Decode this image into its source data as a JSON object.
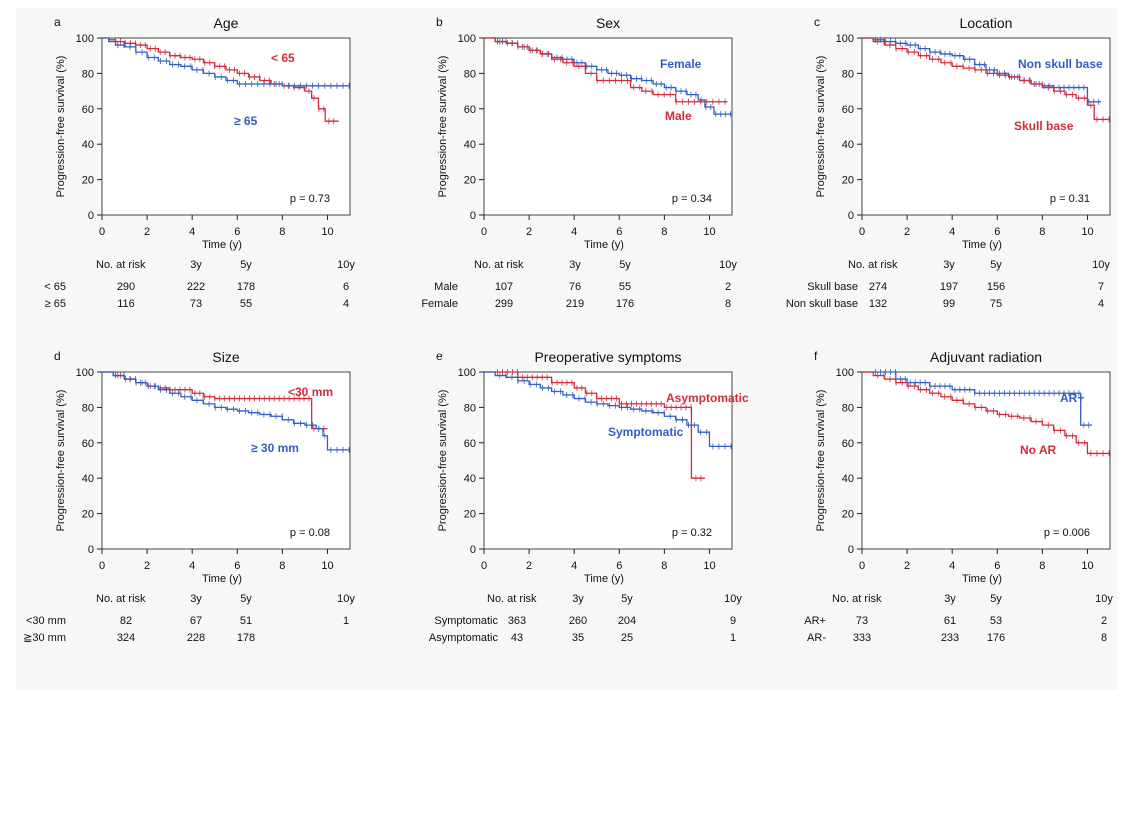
{
  "colors": {
    "red": "#d42b3a",
    "blue": "#2f5fc4"
  },
  "chart_data": [
    {
      "type": "line",
      "letter": "a",
      "title": "Age",
      "xlabel": "Time (y)",
      "ylabel": "Progression-free survival (%)",
      "xlim": [
        0,
        11
      ],
      "ylim": [
        0,
        100
      ],
      "xticks": [
        0,
        2,
        4,
        6,
        8,
        10
      ],
      "yticks": [
        0,
        20,
        40,
        60,
        80,
        100
      ],
      "grid": false,
      "p_value": "p = 0.73",
      "series": [
        {
          "name": "< 65",
          "color": "red",
          "x": [
            0,
            0.3,
            0.6,
            1.0,
            1.5,
            2.0,
            2.5,
            3.0,
            3.5,
            4.0,
            4.5,
            5.0,
            5.5,
            6.0,
            6.5,
            7.0,
            7.5,
            8.0,
            8.5,
            9.0,
            9.3,
            9.6,
            9.9,
            10.5
          ],
          "y": [
            100,
            99,
            98,
            97,
            96,
            94,
            92,
            90,
            89,
            88,
            86,
            84,
            82,
            80,
            78,
            76,
            74,
            73,
            72,
            70,
            66,
            60,
            53,
            53
          ]
        },
        {
          "name": "≥ 65",
          "color": "blue",
          "x": [
            0,
            0.3,
            0.6,
            1.0,
            1.5,
            2.0,
            2.5,
            3.0,
            3.5,
            4.0,
            4.5,
            5.0,
            5.5,
            6.0,
            7.0,
            8.0,
            9.0,
            10.0,
            11.0
          ],
          "y": [
            100,
            98,
            96,
            95,
            92,
            89,
            87,
            85,
            84,
            82,
            80,
            78,
            76,
            74,
            74,
            73,
            73,
            73,
            73
          ]
        }
      ],
      "risk_table": {
        "header": "No. at risk",
        "times": [
          "3y",
          "5y",
          "10y"
        ],
        "rows": [
          {
            "label": "< 65",
            "n": "290",
            "values": [
              "222",
              "178",
              "6"
            ]
          },
          {
            "label": "≥ 65",
            "n": "116",
            "values": [
              "73",
              "55",
              "4"
            ]
          }
        ]
      }
    },
    {
      "type": "line",
      "letter": "b",
      "title": "Sex",
      "xlabel": "Time (y)",
      "ylabel": "Progression-free survival (%)",
      "xlim": [
        0,
        11
      ],
      "ylim": [
        0,
        100
      ],
      "xticks": [
        0,
        2,
        4,
        6,
        8,
        10
      ],
      "yticks": [
        0,
        20,
        40,
        60,
        80,
        100
      ],
      "grid": false,
      "p_value": "p = 0.34",
      "series": [
        {
          "name": "Female",
          "color": "blue",
          "x": [
            0,
            0.5,
            1.0,
            1.5,
            2.0,
            2.5,
            3.0,
            3.5,
            4.0,
            4.5,
            5.0,
            5.5,
            6.0,
            6.5,
            7.0,
            7.5,
            8.0,
            8.5,
            9.0,
            9.5,
            9.8,
            10.2,
            11.0
          ],
          "y": [
            100,
            98,
            97,
            95,
            93,
            91,
            89,
            88,
            86,
            84,
            82,
            80,
            79,
            77,
            76,
            74,
            72,
            70,
            68,
            65,
            61,
            57,
            57
          ]
        },
        {
          "name": "Male",
          "color": "red",
          "x": [
            0,
            0.5,
            1.0,
            1.5,
            2.0,
            2.5,
            3.0,
            3.5,
            4.0,
            4.5,
            5.0,
            6.0,
            6.5,
            7.0,
            7.5,
            8.0,
            8.5,
            9.0,
            9.5,
            10.0,
            10.8
          ],
          "y": [
            100,
            98,
            97,
            95,
            93,
            91,
            88,
            86,
            84,
            80,
            76,
            76,
            72,
            70,
            68,
            68,
            64,
            64,
            64,
            64,
            64
          ]
        }
      ],
      "risk_table": {
        "header": "No. at risk",
        "times": [
          "3y",
          "5y",
          "10y"
        ],
        "rows": [
          {
            "label": "Male",
            "n": "107",
            "values": [
              "76",
              "55",
              "2"
            ]
          },
          {
            "label": "Female",
            "n": "299",
            "values": [
              "219",
              "176",
              "8"
            ]
          }
        ]
      }
    },
    {
      "type": "line",
      "letter": "c",
      "title": "Location",
      "xlabel": "Time (y)",
      "ylabel": "Progression-free survival (%)",
      "xlim": [
        0,
        11
      ],
      "ylim": [
        0,
        100
      ],
      "xticks": [
        0,
        2,
        4,
        6,
        8,
        10
      ],
      "yticks": [
        0,
        20,
        40,
        60,
        80,
        100
      ],
      "grid": false,
      "p_value": "p = 0.31",
      "series": [
        {
          "name": "Non skull base",
          "color": "blue",
          "x": [
            0,
            0.5,
            1.0,
            1.5,
            2.0,
            2.5,
            3.0,
            3.5,
            4.0,
            4.5,
            5.0,
            5.5,
            6.0,
            6.5,
            7.0,
            7.5,
            8.0,
            8.5,
            9.0,
            9.5,
            10.0,
            10.6
          ],
          "y": [
            100,
            99,
            98,
            97,
            96,
            94,
            92,
            91,
            90,
            88,
            85,
            82,
            80,
            78,
            76,
            74,
            73,
            72,
            72,
            72,
            64,
            64
          ]
        },
        {
          "name": "Skull base",
          "color": "red",
          "x": [
            0,
            0.5,
            1.0,
            1.5,
            2.0,
            2.5,
            3.0,
            3.5,
            4.0,
            4.5,
            5.0,
            5.5,
            6.0,
            6.5,
            7.0,
            7.5,
            8.0,
            8.5,
            9.0,
            9.5,
            10.0,
            10.3,
            11.0
          ],
          "y": [
            100,
            98,
            96,
            94,
            92,
            90,
            88,
            86,
            84,
            83,
            82,
            80,
            79,
            78,
            76,
            74,
            72,
            70,
            68,
            66,
            62,
            54,
            54
          ]
        }
      ],
      "risk_table": {
        "header": "No. at risk",
        "times": [
          "3y",
          "5y",
          "10y"
        ],
        "rows": [
          {
            "label": "Skull base",
            "n": "274",
            "values": [
              "197",
              "156",
              "7"
            ]
          },
          {
            "label": "Non skull base",
            "n": "132",
            "values": [
              "99",
              "75",
              "4"
            ]
          }
        ]
      }
    },
    {
      "type": "line",
      "letter": "d",
      "title": "Size",
      "xlabel": "Time (y)",
      "ylabel": "Progression-free survival (%)",
      "xlim": [
        0,
        11
      ],
      "ylim": [
        0,
        100
      ],
      "xticks": [
        0,
        2,
        4,
        6,
        8,
        10
      ],
      "yticks": [
        0,
        20,
        40,
        60,
        80,
        100
      ],
      "grid": false,
      "p_value": "p = 0.08",
      "series": [
        {
          "name": "<30 mm",
          "color": "red",
          "x": [
            0,
            0.5,
            1.0,
            1.5,
            2.0,
            2.5,
            3.0,
            3.5,
            4.0,
            4.5,
            5.0,
            6.0,
            7.0,
            8.0,
            9.0,
            9.3,
            10.0
          ],
          "y": [
            100,
            98,
            96,
            94,
            92,
            91,
            90,
            90,
            88,
            86,
            85,
            85,
            85,
            85,
            85,
            68,
            68
          ]
        },
        {
          "name": "≥ 30 mm",
          "color": "blue",
          "x": [
            0,
            0.5,
            1.0,
            1.5,
            2.0,
            2.5,
            3.0,
            3.5,
            4.0,
            4.5,
            5.0,
            5.5,
            6.0,
            6.5,
            7.0,
            7.5,
            8.0,
            8.5,
            9.0,
            9.5,
            9.8,
            10.0,
            10.5,
            11.0
          ],
          "y": [
            100,
            98,
            96,
            94,
            92,
            90,
            88,
            86,
            84,
            82,
            80,
            79,
            78,
            77,
            76,
            75,
            73,
            71,
            70,
            68,
            64,
            56,
            56,
            56
          ]
        }
      ],
      "risk_table": {
        "header": "No. at risk",
        "times": [
          "3y",
          "5y",
          "10y"
        ],
        "rows": [
          {
            "label": "<30 mm",
            "n": "82",
            "values": [
              "67",
              "51",
              "1"
            ]
          },
          {
            "label": "≧30 mm",
            "n": "324",
            "values": [
              "228",
              "178",
              ""
            ]
          }
        ]
      }
    },
    {
      "type": "line",
      "letter": "e",
      "title": "Preoperative symptoms",
      "xlabel": "Time (y)",
      "ylabel": "Progression-free survival (%)",
      "xlim": [
        0,
        11
      ],
      "ylim": [
        0,
        100
      ],
      "xticks": [
        0,
        2,
        4,
        6,
        8,
        10
      ],
      "yticks": [
        0,
        20,
        40,
        60,
        80,
        100
      ],
      "grid": false,
      "p_value": "p = 0.32",
      "series": [
        {
          "name": "Asymptomatic",
          "color": "red",
          "x": [
            0,
            1.0,
            1.5,
            2.0,
            3.0,
            4.0,
            4.5,
            5.0,
            6.0,
            7.0,
            8.0,
            9.0,
            9.2,
            9.8
          ],
          "y": [
            100,
            100,
            97,
            97,
            94,
            91,
            88,
            85,
            82,
            82,
            80,
            80,
            40,
            40
          ]
        },
        {
          "name": "Symptomatic",
          "color": "blue",
          "x": [
            0,
            0.5,
            1.0,
            1.5,
            2.0,
            2.5,
            3.0,
            3.5,
            4.0,
            4.5,
            5.0,
            5.5,
            6.0,
            6.5,
            7.0,
            7.5,
            8.0,
            8.5,
            9.0,
            9.5,
            10.0,
            11.0
          ],
          "y": [
            100,
            98,
            97,
            95,
            93,
            91,
            89,
            87,
            85,
            83,
            82,
            81,
            80,
            79,
            78,
            77,
            75,
            73,
            70,
            66,
            58,
            58
          ]
        }
      ],
      "risk_table": {
        "header": "No. at risk",
        "times": [
          "3y",
          "5y",
          "10y"
        ],
        "rows": [
          {
            "label": "Symptomatic",
            "n": "363",
            "values": [
              "260",
              "204",
              "9"
            ]
          },
          {
            "label": "Asymptomatic",
            "n": "43",
            "values": [
              "35",
              "25",
              "1"
            ]
          }
        ]
      }
    },
    {
      "type": "line",
      "letter": "f",
      "title": "Adjuvant radiation",
      "xlabel": "Time (y)",
      "ylabel": "Progression-free survival (%)",
      "xlim": [
        0,
        11
      ],
      "ylim": [
        0,
        100
      ],
      "xticks": [
        0,
        2,
        4,
        6,
        8,
        10
      ],
      "yticks": [
        0,
        20,
        40,
        60,
        80,
        100
      ],
      "grid": false,
      "p_value": "p = 0.006",
      "series": [
        {
          "name": "AR+",
          "color": "blue",
          "x": [
            0,
            1.0,
            1.5,
            2.0,
            3.0,
            4.0,
            5.0,
            6.0,
            7.0,
            8.0,
            9.0,
            9.7,
            10.2
          ],
          "y": [
            100,
            100,
            96,
            94,
            92,
            90,
            88,
            88,
            88,
            88,
            88,
            70,
            70
          ]
        },
        {
          "name": "No AR",
          "color": "red",
          "x": [
            0,
            0.5,
            1.0,
            1.5,
            2.0,
            2.5,
            3.0,
            3.5,
            4.0,
            4.5,
            5.0,
            5.5,
            6.0,
            6.5,
            7.0,
            7.5,
            8.0,
            8.5,
            9.0,
            9.5,
            10.0,
            11.0
          ],
          "y": [
            100,
            98,
            96,
            94,
            92,
            90,
            88,
            86,
            84,
            82,
            80,
            78,
            76,
            75,
            74,
            72,
            70,
            67,
            64,
            60,
            54,
            54
          ]
        }
      ],
      "risk_table": {
        "header": "No. at risk",
        "times": [
          "3y",
          "5y",
          "10y"
        ],
        "rows": [
          {
            "label": "AR+",
            "n": "73",
            "values": [
              "61",
              "53",
              "2"
            ]
          },
          {
            "label": "AR-",
            "n": "333",
            "values": [
              "233",
              "176",
              "8"
            ]
          }
        ]
      }
    }
  ]
}
